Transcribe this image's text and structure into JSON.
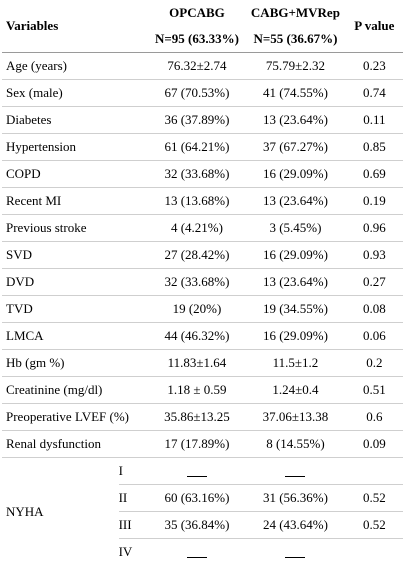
{
  "header": {
    "variables": "Variables",
    "group_a": "OPCABG",
    "group_b": "CABG+MVRep",
    "group_a_n": "N=95 (63.33%)",
    "group_b_n": "N=55 (36.67%)",
    "p_value": "P value"
  },
  "rows": [
    {
      "label": "Age (years)",
      "a": "76.32±2.74",
      "b": "75.79±2.32",
      "p": "0.23"
    },
    {
      "label": "Sex (male)",
      "a": "67 (70.53%)",
      "b": "41 (74.55%)",
      "p": "0.74"
    },
    {
      "label": "Diabetes",
      "a": "36 (37.89%)",
      "b": "13 (23.64%)",
      "p": "0.11"
    },
    {
      "label": "Hypertension",
      "a": "61 (64.21%)",
      "b": "37 (67.27%)",
      "p": "0.85"
    },
    {
      "label": "COPD",
      "a": "32 (33.68%)",
      "b": "16 (29.09%)",
      "p": "0.69"
    },
    {
      "label": "Recent MI",
      "a": "13 (13.68%)",
      "b": "13 (23.64%)",
      "p": "0.19"
    },
    {
      "label": "Previous stroke",
      "a": "4 (4.21%)",
      "b": "3 (5.45%)",
      "p": "0.96"
    },
    {
      "label": "SVD",
      "a": "27 (28.42%)",
      "b": "16 (29.09%)",
      "p": "0.93"
    },
    {
      "label": "DVD",
      "a": "32 (33.68%)",
      "b": "13 (23.64%)",
      "p": "0.27"
    },
    {
      "label": "TVD",
      "a": "19 (20%)",
      "b": "19 (34.55%)",
      "p": "0.08"
    },
    {
      "label": "LMCA",
      "a": "44 (46.32%)",
      "b": "16 (29.09%)",
      "p": "0.06"
    },
    {
      "label": "Hb (gm %)",
      "a": "11.83±1.64",
      "b": "11.5±1.2",
      "p": "0.2"
    },
    {
      "label": "Creatinine (mg/dl)",
      "a": "1.18 ± 0.59",
      "b": "1.24±0.4",
      "p": "0.51"
    },
    {
      "label": "Preoperative LVEF (%)",
      "a": "35.86±13.25",
      "b": "37.06±13.38",
      "p": "0.6"
    },
    {
      "label": "Renal dysfunction",
      "a": "17 (17.89%)",
      "b": "8 (14.55%)",
      "p": "0.09"
    }
  ],
  "nyha": {
    "label": "NYHA",
    "classes": [
      {
        "cls": "I",
        "a": "",
        "b": "",
        "p": ""
      },
      {
        "cls": "II",
        "a": "60 (63.16%)",
        "b": "31 (56.36%)",
        "p": "0.52"
      },
      {
        "cls": "III",
        "a": "35 (36.84%)",
        "b": "24 (43.64%)",
        "p": "0.52"
      },
      {
        "cls": "IV",
        "a": "",
        "b": "",
        "p": ""
      }
    ]
  }
}
